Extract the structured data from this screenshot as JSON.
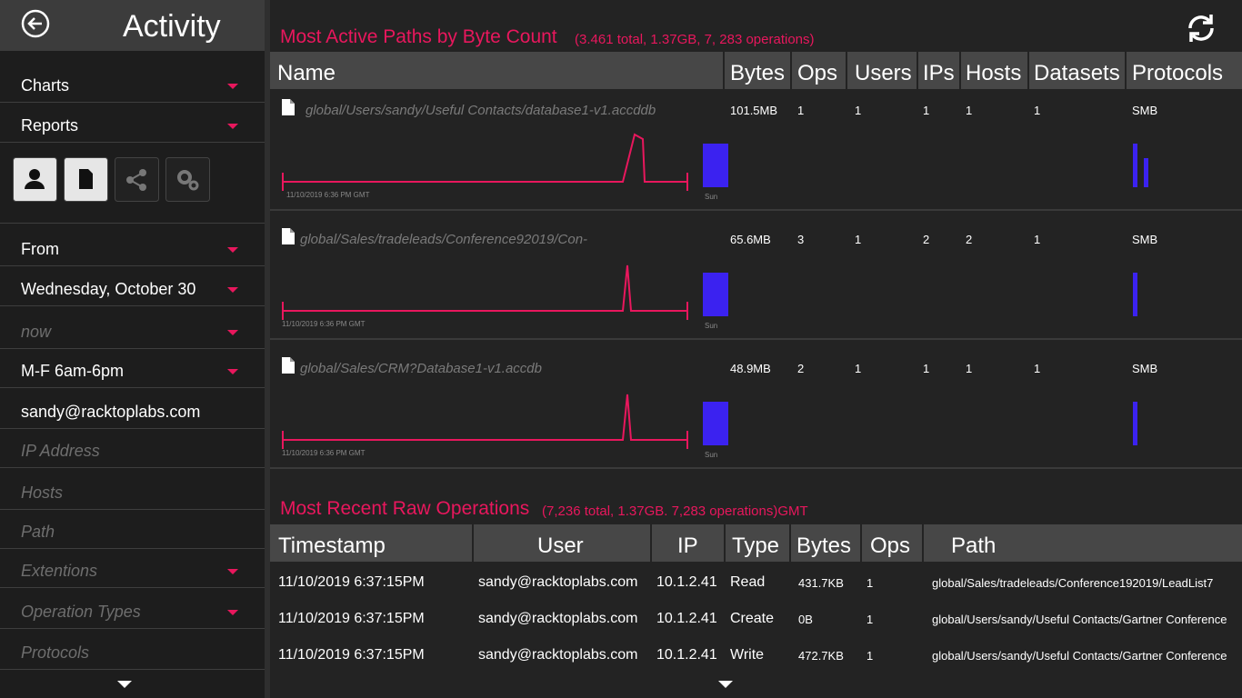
{
  "sidebar": {
    "title": "Activity",
    "menus": [
      "Charts",
      "Reports"
    ],
    "filters": [
      {
        "label": "From",
        "dropdown": true,
        "placeholder": false
      },
      {
        "label": "Wednesday, October 30",
        "dropdown": true,
        "placeholder": false
      },
      {
        "label": "now",
        "dropdown": true,
        "placeholder": true
      },
      {
        "label": "M-F 6am-6pm",
        "dropdown": true,
        "placeholder": false
      },
      {
        "label": "sandy@racktoplabs.com",
        "dropdown": false,
        "placeholder": false
      },
      {
        "label": "IP Address",
        "dropdown": false,
        "placeholder": true
      },
      {
        "label": "Hosts",
        "dropdown": false,
        "placeholder": true
      },
      {
        "label": "Path",
        "dropdown": false,
        "placeholder": true
      },
      {
        "label": "Extentions",
        "dropdown": true,
        "placeholder": true
      },
      {
        "label": "Operation Types",
        "dropdown": true,
        "placeholder": true
      },
      {
        "label": "Protocols",
        "dropdown": false,
        "placeholder": true
      }
    ]
  },
  "paths": {
    "title": "Most Active Paths by Byte Count",
    "summary": "(3.461 total, 1.37GB, 7, 283 operations)",
    "columns": [
      "Name",
      "Bytes",
      "Ops",
      "Users",
      "IPs",
      "Hosts",
      "Datasets",
      "Protocols"
    ],
    "rows": [
      {
        "name": "global/Users/sandy/Useful Contacts/database1-v1.accddb",
        "bytes": "101.5MB",
        "ops": "1",
        "users": "1",
        "ips": "1",
        "hosts": "1",
        "datasets": "1",
        "protocols": "SMB",
        "chart_date": "11/10/2019 6:36 PM GMT",
        "chart_day": "Sun"
      },
      {
        "name": "global/Sales/tradeleads/Conference92019/Con-",
        "bytes": "65.6MB",
        "ops": "3",
        "users": "1",
        "ips": "2",
        "hosts": "2",
        "datasets": "1",
        "protocols": "SMB",
        "chart_date": "11/10/2019 6:36 PM GMT",
        "chart_day": "Sun"
      },
      {
        "name": "global/Sales/CRM?Database1-v1.accdb",
        "bytes": "48.9MB",
        "ops": "2",
        "users": "1",
        "ips": "1",
        "hosts": "1",
        "datasets": "1",
        "protocols": "SMB",
        "chart_date": "11/10/2019 6:36 PM GMT",
        "chart_day": "Sun"
      }
    ]
  },
  "operations": {
    "title": "Most Recent Raw Operations",
    "summary": "(7,236 total, 1.37GB. 7,283 operations)GMT",
    "columns": [
      "Timestamp",
      "User",
      "IP",
      "Type",
      "Bytes",
      "Ops",
      "Path"
    ],
    "rows": [
      [
        "11/10/2019 6:37:15PM",
        "sandy@racktoplabs.com",
        "10.1.2.41",
        "Read",
        "431.7KB",
        "1",
        "global/Sales/tradeleads/Conference192019/LeadList7"
      ],
      [
        "11/10/2019 6:37:15PM",
        "sandy@racktoplabs.com",
        "10.1.2.41",
        "Create",
        "0B",
        "1",
        "global/Users/sandy/Useful Contacts/Gartner Conference"
      ],
      [
        "11/10/2019 6:37:15PM",
        "sandy@racktoplabs.com",
        "10.1.2.41",
        "Write",
        "472.7KB",
        "1",
        "global/Users/sandy/Useful Contacts/Gartner Conference"
      ]
    ]
  }
}
